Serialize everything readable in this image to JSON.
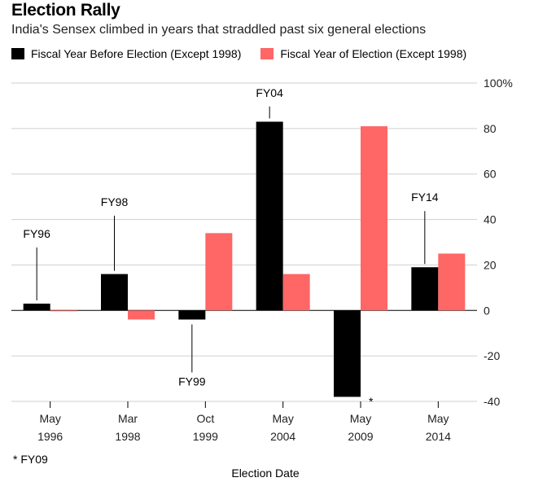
{
  "title": "Election Rally",
  "subtitle": "India's Sensex climbed in years that straddled past six general elections",
  "legend": [
    {
      "label": "Fiscal Year Before Election (Except 1998)",
      "color": "#000000"
    },
    {
      "label": "Fiscal Year of Election (Except 1998)",
      "color": "#ff6666"
    }
  ],
  "footnote": "* FY09",
  "chart_data": {
    "type": "bar",
    "title": "Election Rally",
    "subtitle": "India's Sensex climbed in years that straddled past six general elections",
    "xlabel": "Election Date",
    "ylabel": "",
    "categories": [
      [
        "May",
        "1996"
      ],
      [
        "Mar",
        "1998"
      ],
      [
        "Oct",
        "1999"
      ],
      [
        "May",
        "2004"
      ],
      [
        "May",
        "2009"
      ],
      [
        "May",
        "2014"
      ]
    ],
    "series": [
      {
        "name": "Fiscal Year Before Election (Except 1998)",
        "color": "#000000",
        "values": [
          3,
          16,
          -4,
          83,
          -38,
          19
        ]
      },
      {
        "name": "Fiscal Year of Election (Except 1998)",
        "color": "#ff6666",
        "values": [
          0,
          -4,
          34,
          16,
          81,
          25
        ]
      }
    ],
    "ylim": [
      -40,
      100
    ],
    "yticks": [
      -40,
      -20,
      0,
      20,
      40,
      60,
      80,
      100
    ],
    "ytick_labels": [
      "-40",
      "-20",
      "0",
      "20",
      "40",
      "60",
      "80",
      "100%"
    ],
    "grid": true,
    "legend_position": "top",
    "annotations": [
      {
        "text": "FY96",
        "category_index": 0,
        "series_index": 0,
        "label_value": 32,
        "placement": "above"
      },
      {
        "text": "FY98",
        "category_index": 1,
        "series_index": 0,
        "label_value": 46,
        "placement": "above"
      },
      {
        "text": "FY99",
        "category_index": 2,
        "series_index": 0,
        "label_value": -33,
        "placement": "below"
      },
      {
        "text": "FY04",
        "category_index": 3,
        "series_index": 0,
        "label_value": 94,
        "placement": "above"
      },
      {
        "text": "FY14",
        "category_index": 5,
        "series_index": 0,
        "label_value": 48,
        "placement": "above"
      },
      {
        "text": "*",
        "category_index": 4,
        "series_index": 0,
        "label_value": -39,
        "placement": "right"
      }
    ]
  }
}
